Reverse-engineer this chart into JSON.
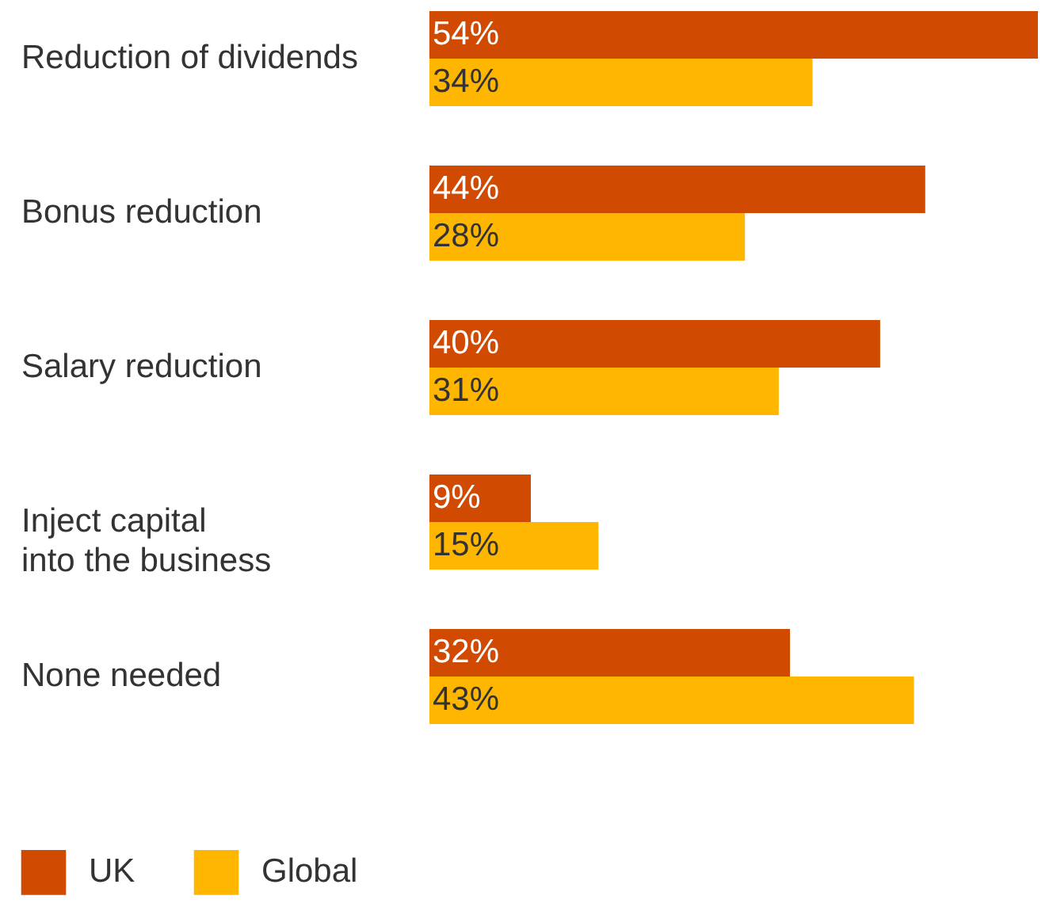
{
  "chart_data": {
    "type": "bar",
    "orientation": "horizontal",
    "categories": [
      "Reduction of dividends",
      "Bonus reduction",
      "Salary reduction",
      "Inject capital into the business",
      "None needed"
    ],
    "series": [
      {
        "name": "UK",
        "color": "#d04a02",
        "values": [
          54,
          44,
          40,
          9,
          32
        ],
        "value_labels": [
          "54%",
          "44%",
          "40%",
          "9%",
          "32%"
        ]
      },
      {
        "name": "Global",
        "color": "#ffb600",
        "values": [
          34,
          28,
          31,
          15,
          43
        ],
        "value_labels": [
          "34%",
          "28%",
          "31%",
          "15%",
          "43%"
        ]
      }
    ],
    "legend": "bottom left"
  }
}
